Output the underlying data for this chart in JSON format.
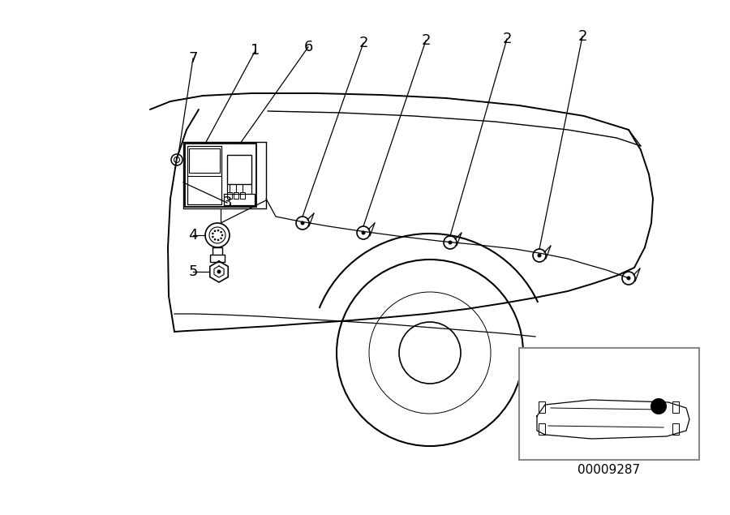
{
  "background_color": "#ffffff",
  "line_color": "#000000",
  "diagram_id": "00009287",
  "label_fontsize": 13,
  "id_fontsize": 11
}
